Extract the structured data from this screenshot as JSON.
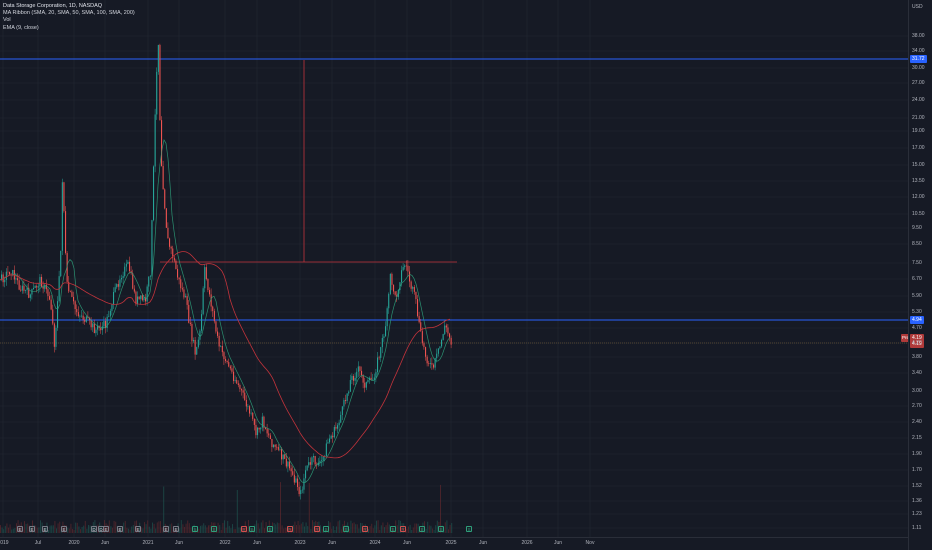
{
  "legend": {
    "title": "Data Storage Corporation, 1D, NASDAQ",
    "ma_ribbon": "MA Ribbon (SMA, 20, SMA, 50, SMA, 100, SMA, 200)",
    "vol": "Vol",
    "ema": "EMA (9, close)"
  },
  "price_axis": {
    "currency": "USD",
    "ticks": [
      "38.00",
      "34.00",
      "30.00",
      "27.00",
      "24.00",
      "21.00",
      "19.00",
      "17.00",
      "15.00",
      "13.50",
      "12.00",
      "10.50",
      "9.50",
      "8.50",
      "7.50",
      "6.70",
      "5.90",
      "5.30",
      "4.70",
      "4.20",
      "3.80",
      "3.40",
      "3.00",
      "2.70",
      "2.40",
      "2.15",
      "1.90",
      "1.70",
      "1.52",
      "1.36",
      "1.23",
      "1.11"
    ],
    "tags": {
      "upper_line": "31.72",
      "mid_line": "4.94",
      "pre_label": "Pre",
      "current": "4.19",
      "current_dup": "4.19"
    }
  },
  "time_axis": {
    "labels": [
      "2019",
      "Jul",
      "2020",
      "Jun",
      "2021",
      "Jun",
      "2022",
      "Jun",
      "2023",
      "Jun",
      "2024",
      "Jun",
      "2025",
      "Jun",
      "2026",
      "Jun",
      "Nov"
    ]
  },
  "events": [
    "E",
    "E",
    "E",
    "E",
    "D",
    "D",
    "E",
    "E",
    "E",
    "E",
    "E",
    "S",
    "S",
    "R",
    "S",
    "S",
    "R",
    "R",
    "S",
    "S",
    "R",
    "S",
    "R",
    "S",
    "S",
    "S",
    "F"
  ],
  "colors": {
    "background": "#161a25",
    "up_candle": "#26a69a",
    "down_candle": "#ef5350",
    "blue_line": "#2962ff",
    "ema": "#2e9e7a",
    "sma_long": "#c2333b",
    "current_price": "#b03a3a"
  }
}
